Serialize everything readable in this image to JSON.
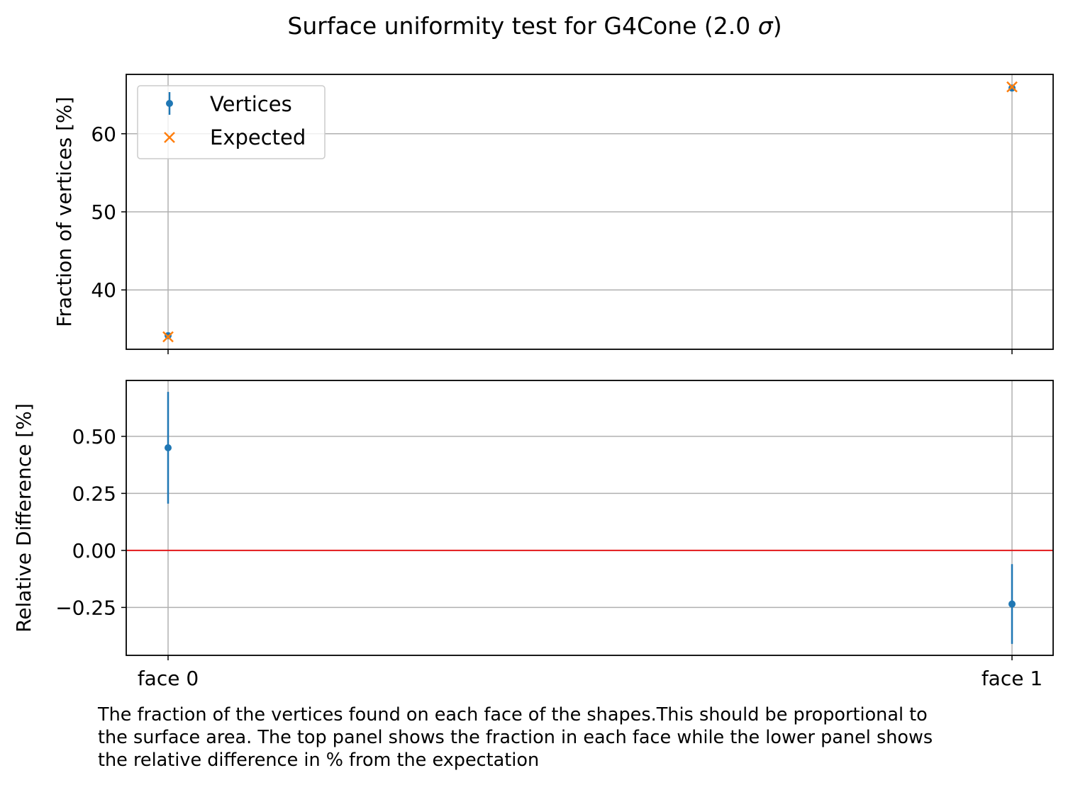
{
  "chart_data": {
    "type": "scatter",
    "title_text": "Surface uniformity test for G4Cone (2.0 ",
    "title_symbol": "σ",
    "title_end": ")",
    "categories": [
      "face 0",
      "face 1"
    ],
    "colors": {
      "vertices": "#1f77b4",
      "expected": "#ff7f0e",
      "zero_line": "#e31a1c",
      "grid": "#b0b0b0"
    },
    "panels": [
      {
        "ylabel": "Fraction of vertices [%]",
        "ylim": [
          32.4,
          67.6
        ],
        "yticks": [
          {
            "value": 40,
            "label": "40"
          },
          {
            "value": 50,
            "label": "50"
          },
          {
            "value": 60,
            "label": "60"
          }
        ],
        "grid": true,
        "legend": "upper-left",
        "series": [
          {
            "name": "Vertices",
            "marker": "point-errorbar",
            "values": [
              34.15,
              65.85
            ],
            "errors": [
              0.08,
              0.08
            ]
          },
          {
            "name": "Expected",
            "marker": "x",
            "values": [
              34.0,
              66.0
            ]
          }
        ]
      },
      {
        "ylabel": "Relative Difference [%]",
        "ylim": [
          -0.46,
          0.745
        ],
        "yticks": [
          {
            "value": -0.25,
            "label": "−0.25"
          },
          {
            "value": 0.0,
            "label": "0.00"
          },
          {
            "value": 0.25,
            "label": "0.25"
          },
          {
            "value": 0.5,
            "label": "0.50"
          }
        ],
        "grid": true,
        "reference_line": 0.0,
        "series": [
          {
            "marker": "point-errorbar",
            "values": [
              0.45,
              -0.235
            ],
            "errors": [
              0.245,
              0.175
            ]
          }
        ]
      }
    ]
  },
  "caption": {
    "lines": [
      "The fraction of the vertices found on each face of the shapes.This should be proportional to",
      "the surface area. The top panel shows the fraction in each face while the lower panel shows",
      "the relative difference in % from the expectation"
    ]
  }
}
